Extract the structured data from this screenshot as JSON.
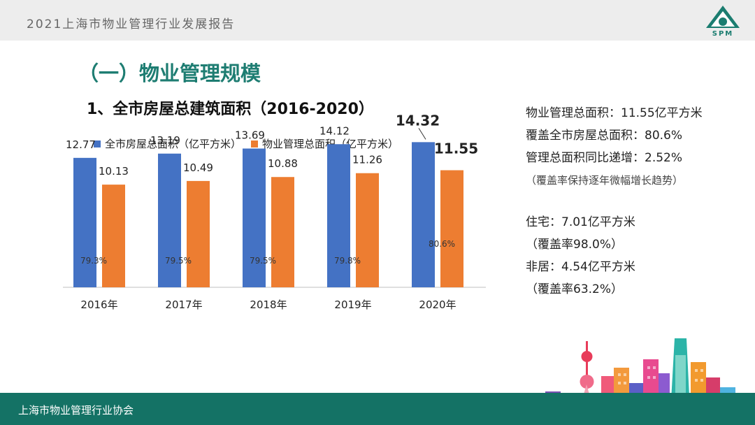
{
  "header": {
    "report_title": "2021上海市物业管理行业发展报告",
    "logo_text": "SPM"
  },
  "section_title": "（一）物业管理规模",
  "chart_title": "1、全市房屋总建筑面积（2016-2020）",
  "colors": {
    "accent": "#1e7d72",
    "series_blue": "#4472c4",
    "series_orange": "#ed7d31",
    "footer_bar": "#147265"
  },
  "chart_data": {
    "type": "bar",
    "categories": [
      "2016年",
      "2017年",
      "2018年",
      "2019年",
      "2020年"
    ],
    "series": [
      {
        "name": "全市房屋总面积（亿平方米）",
        "values": [
          12.77,
          13.19,
          13.69,
          14.12,
          14.32
        ],
        "color": "#4472c4"
      },
      {
        "name": "物业管理总面积（亿平方米）",
        "values": [
          10.13,
          10.49,
          10.88,
          11.26,
          11.55
        ],
        "color": "#ed7d31"
      }
    ],
    "value_labels": {
      "total": [
        "12.77",
        "13.19",
        "13.69",
        "14.12",
        "14.32"
      ],
      "managed": [
        "10.13",
        "10.49",
        "10.88",
        "11.26",
        "11.55"
      ]
    },
    "coverage_labels": [
      "79.3%",
      "79.5%",
      "79.5%",
      "79.8%",
      "80.6%"
    ],
    "ylim": [
      0,
      16
    ],
    "grid": false,
    "legend_position": "top-left"
  },
  "stats": {
    "lines": [
      "物业管理总面积：11.55亿平方米",
      "覆盖全市房屋总面积：80.6%",
      "管理总面积同比递增：2.52%",
      "（覆盖率保持逐年微幅增长趋势）",
      "住宅：7.01亿平方米",
      "（覆盖率98.0%）",
      "非居：4.54亿平方米",
      "（覆盖率63.2%）"
    ]
  },
  "footer": {
    "org_name": "上海市物业管理行业协会"
  }
}
